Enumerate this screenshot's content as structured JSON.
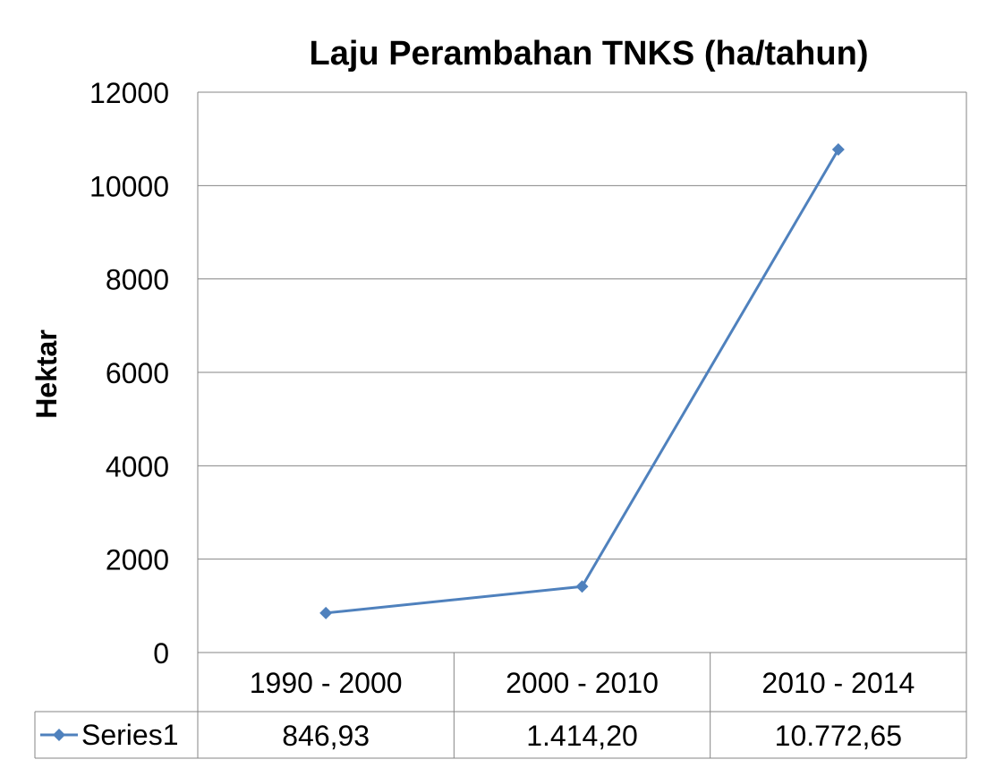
{
  "chart_data": {
    "type": "line",
    "title": "Laju Perambahan TNKS (ha/tahun)",
    "xlabel": "",
    "ylabel": "Hektar",
    "categories": [
      "1990 - 2000",
      "2000 - 2010",
      "2010 - 2014"
    ],
    "series": [
      {
        "name": "Series1",
        "values": [
          846.93,
          1414.2,
          10772.65
        ],
        "value_labels": [
          "846,93",
          "1.414,20",
          "10.772,65"
        ],
        "color": "#4F81BD",
        "marker": "diamond"
      }
    ],
    "ylim": [
      0,
      12000
    ],
    "yticks": [
      0,
      2000,
      4000,
      6000,
      8000,
      10000,
      12000
    ],
    "ytick_labels": [
      "0",
      "2000",
      "4000",
      "6000",
      "8000",
      "10000",
      "12000"
    ],
    "grid": true,
    "legend": "data-table-left",
    "data_table": true
  }
}
